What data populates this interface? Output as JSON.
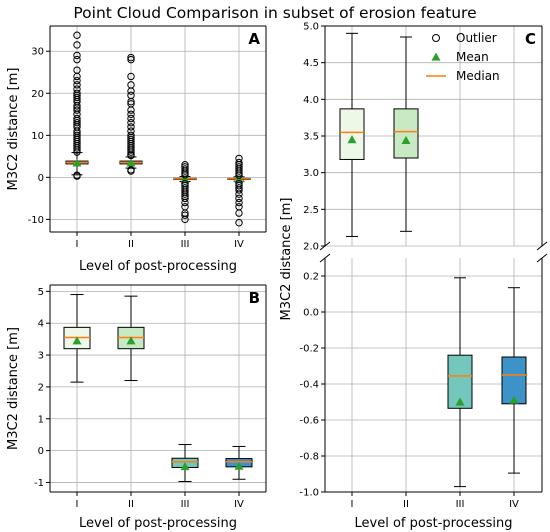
{
  "title": "Point Cloud Comparison in subset of erosion feature",
  "colors": {
    "box_fills": [
      "#eef7e8",
      "#c9e8c4",
      "#74c7bd",
      "#3d93c8"
    ],
    "mean_marker": "#2ca02c",
    "median_line": "#ff7f0e",
    "grid": "#b0b0b0"
  },
  "legend": {
    "placement": "top-right of panel C",
    "items": [
      {
        "label": "Outlier",
        "marker": "open-circle"
      },
      {
        "label": "Mean",
        "marker": "green-triangle"
      },
      {
        "label": "Median",
        "marker": "orange-line"
      }
    ]
  },
  "chart_data": [
    {
      "panel": "A",
      "type": "boxplot",
      "xlabel": "Level of post-processing",
      "ylabel": "M3C2 distance [m]",
      "categories": [
        "I",
        "II",
        "III",
        "IV"
      ],
      "ylim": [
        -13,
        36
      ],
      "yticks": [
        -10,
        0,
        10,
        20,
        30
      ],
      "grid": true,
      "boxes": [
        {
          "whislo": 0.6,
          "q1": 3.2,
          "med": 3.55,
          "q3": 3.87,
          "whishi": 5.9,
          "mean": 3.45
        },
        {
          "whislo": 2.2,
          "q1": 3.2,
          "med": 3.55,
          "q3": 3.87,
          "whishi": 4.85,
          "mean": 3.45
        },
        {
          "whislo": -0.97,
          "q1": -0.53,
          "med": -0.35,
          "q3": -0.24,
          "whishi": 0.19,
          "mean": -0.5
        },
        {
          "whislo": -0.9,
          "q1": -0.51,
          "med": -0.35,
          "q3": -0.25,
          "whishi": 0.13,
          "mean": -0.49
        }
      ],
      "outliers": [
        [
          6,
          6.5,
          7,
          7.5,
          8,
          8.5,
          9,
          9.5,
          10,
          10.5,
          11,
          12,
          12.5,
          13,
          13.5,
          14,
          15,
          16,
          16.5,
          17,
          18,
          18.5,
          19,
          19.5,
          20,
          21,
          22,
          23,
          24,
          25.5,
          28,
          29,
          31.5,
          33.8,
          0.3,
          0.5
        ],
        [
          5.2,
          5.5,
          6,
          6.5,
          7,
          7.5,
          8,
          8.5,
          9,
          9.5,
          10,
          11,
          12,
          13,
          14,
          15,
          16,
          17.5,
          18,
          19.5,
          20.5,
          22,
          24,
          28,
          28.5,
          1.8,
          1.5
        ],
        [
          0.6,
          1,
          1.5,
          2,
          2.5,
          3,
          -1.5,
          -2,
          -2.5,
          -3,
          -3.5,
          -4,
          -4.5,
          -5,
          -6,
          -7,
          -8.5,
          -9,
          -10
        ],
        [
          0.5,
          1,
          1.5,
          2,
          2.5,
          3,
          3.5,
          4.5,
          -1.5,
          -2,
          -2.5,
          -3,
          -4,
          -5,
          -6,
          -7,
          -8.5,
          -10.8
        ]
      ]
    },
    {
      "panel": "B",
      "type": "boxplot",
      "xlabel": "Level of post-processing",
      "ylabel": "M3C2 distance [m]",
      "categories": [
        "I",
        "II",
        "III",
        "IV"
      ],
      "ylim": [
        -1.3,
        5.2
      ],
      "yticks": [
        -1,
        0,
        1,
        2,
        3,
        4,
        5
      ],
      "grid": true,
      "boxes": [
        {
          "whislo": 2.15,
          "q1": 3.2,
          "med": 3.55,
          "q3": 3.87,
          "whishi": 4.9,
          "mean": 3.45
        },
        {
          "whislo": 2.2,
          "q1": 3.2,
          "med": 3.55,
          "q3": 3.87,
          "whishi": 4.85,
          "mean": 3.45
        },
        {
          "whislo": -0.97,
          "q1": -0.53,
          "med": -0.35,
          "q3": -0.24,
          "whishi": 0.19,
          "mean": -0.5
        },
        {
          "whislo": -0.9,
          "q1": -0.51,
          "med": -0.35,
          "q3": -0.25,
          "whishi": 0.13,
          "mean": -0.49
        }
      ]
    },
    {
      "panel": "C",
      "type": "boxplot",
      "broken_axis": true,
      "xlabel": "Level of post-processing",
      "ylabel": "M3C2 distance [m]",
      "categories": [
        "I",
        "II",
        "III",
        "IV"
      ],
      "upper": {
        "ylim": [
          2.0,
          5.0
        ],
        "yticks": [
          2.0,
          2.5,
          3.0,
          3.5,
          4.0,
          4.5,
          5.0
        ]
      },
      "lower": {
        "ylim": [
          -1.0,
          0.3
        ],
        "yticks": [
          -1.0,
          -0.8,
          -0.6,
          -0.4,
          -0.2,
          0.0,
          0.2
        ]
      },
      "grid": true,
      "boxes": [
        {
          "whislo": 2.13,
          "q1": 3.18,
          "med": 3.55,
          "q3": 3.87,
          "whishi": 4.9,
          "mean": 3.45
        },
        {
          "whislo": 2.2,
          "q1": 3.2,
          "med": 3.56,
          "q3": 3.87,
          "whishi": 4.85,
          "mean": 3.44
        },
        {
          "whislo": -0.97,
          "q1": -0.535,
          "med": -0.355,
          "q3": -0.24,
          "whishi": 0.19,
          "mean": -0.5
        },
        {
          "whislo": -0.895,
          "q1": -0.51,
          "med": -0.35,
          "q3": -0.25,
          "whishi": 0.135,
          "mean": -0.49
        }
      ]
    }
  ]
}
